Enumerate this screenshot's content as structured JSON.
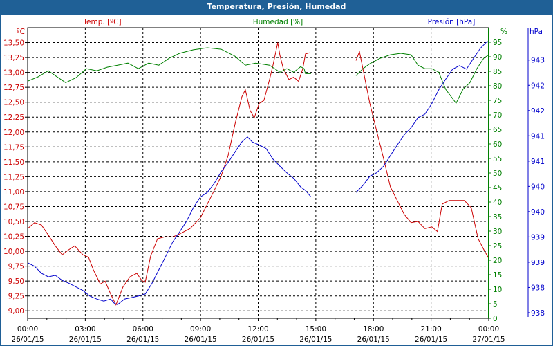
{
  "window": {
    "title": "Temperatura, Presión, Humedad"
  },
  "colors": {
    "temp": "#cc0000",
    "hum": "#008000",
    "pres": "#0000cc",
    "titlebar": "#1f6096"
  },
  "chart_data": {
    "type": "line",
    "title": "Temperatura, Presión, Humedad",
    "axes": {
      "temp": {
        "title": "Temp. [ºC]",
        "unit": "ºC",
        "range": [
          8.875,
          13.75
        ],
        "ticks": [
          9.0,
          9.25,
          9.5,
          9.75,
          10.0,
          10.25,
          10.5,
          10.75,
          11.0,
          11.25,
          11.5,
          11.75,
          12.0,
          12.25,
          12.5,
          12.75,
          13.0,
          13.25,
          13.5
        ],
        "tick_labels": [
          "9,00",
          "9,25",
          "9,50",
          "9,75",
          "10,00",
          "10,25",
          "10,50",
          "10,75",
          "11,00",
          "11,25",
          "11,50",
          "11,75",
          "12,00",
          "12,25",
          "12,50",
          "12,75",
          "13,00",
          "13,25",
          "13,50"
        ]
      },
      "hum": {
        "title": "Humedad [%]",
        "unit": "%",
        "range": [
          0,
          100
        ],
        "ticks": [
          0,
          5,
          10,
          15,
          20,
          25,
          30,
          35,
          40,
          45,
          50,
          55,
          60,
          65,
          70,
          75,
          80,
          85,
          90,
          95
        ],
        "tick_labels": [
          "0",
          "5",
          "10",
          "15",
          "20",
          "25",
          "30",
          "35",
          "40",
          "45",
          "50",
          "55",
          "60",
          "65",
          "70",
          "75",
          "80",
          "85",
          "90",
          "95"
        ]
      },
      "pres": {
        "title": "Presión [hPa]",
        "unit": "hPa",
        "range": [
          937.89,
          943.64
        ],
        "ticks": [
          938.0,
          938.5,
          939.0,
          939.5,
          940.0,
          940.5,
          941.0,
          941.5,
          942.0,
          942.5,
          943.0
        ],
        "tick_labels": [
          "938",
          "938",
          "939",
          "939",
          "940",
          "940",
          "941",
          "941",
          "942",
          "942",
          "943"
        ]
      },
      "x": {
        "range": [
          0,
          24
        ],
        "ticks": [
          0,
          3,
          6,
          9,
          12,
          15,
          18,
          21,
          24
        ],
        "tick_labels": [
          [
            "00:00",
            "26/01/15"
          ],
          [
            "03:00",
            "26/01/15"
          ],
          [
            "06:00",
            "26/01/15"
          ],
          [
            "09:00",
            "26/01/15"
          ],
          [
            "12:00",
            "26/01/15"
          ],
          [
            "15:00",
            "26/01/15"
          ],
          [
            "18:00",
            "26/01/15"
          ],
          [
            "21:00",
            "26/01/15"
          ],
          [
            "00:00",
            "27/01/15"
          ]
        ]
      }
    },
    "series": [
      {
        "name": "Temp. [ºC]",
        "axis": "temp",
        "segments": [
          [
            [
              0,
              10.38
            ],
            [
              0.36,
              10.48
            ],
            [
              0.72,
              10.44
            ],
            [
              1.08,
              10.27
            ],
            [
              1.44,
              10.09
            ],
            [
              1.8,
              9.94
            ],
            [
              2.16,
              10.03
            ],
            [
              2.45,
              10.09
            ],
            [
              2.88,
              9.94
            ],
            [
              3.17,
              9.9
            ],
            [
              3.42,
              9.69
            ],
            [
              3.78,
              9.45
            ],
            [
              4.03,
              9.5
            ],
            [
              4.32,
              9.28
            ],
            [
              4.6,
              9.1
            ],
            [
              4.96,
              9.4
            ],
            [
              5.32,
              9.57
            ],
            [
              5.68,
              9.63
            ],
            [
              5.94,
              9.51
            ],
            [
              6.12,
              9.48
            ],
            [
              6.4,
              9.92
            ],
            [
              6.76,
              10.21
            ],
            [
              7.12,
              10.24
            ],
            [
              7.55,
              10.24
            ],
            [
              7.91,
              10.29
            ],
            [
              8.45,
              10.38
            ],
            [
              8.99,
              10.56
            ],
            [
              9.35,
              10.79
            ],
            [
              9.71,
              11.02
            ],
            [
              10.07,
              11.26
            ],
            [
              10.43,
              11.6
            ],
            [
              10.79,
              12.13
            ],
            [
              11.15,
              12.59
            ],
            [
              11.33,
              12.71
            ],
            [
              11.58,
              12.36
            ],
            [
              11.8,
              12.24
            ],
            [
              12.05,
              12.48
            ],
            [
              12.3,
              12.53
            ],
            [
              12.59,
              12.88
            ],
            [
              12.77,
              13.12
            ],
            [
              13.02,
              13.5
            ],
            [
              13.13,
              13.29
            ],
            [
              13.31,
              13.06
            ],
            [
              13.6,
              12.88
            ],
            [
              13.85,
              12.92
            ],
            [
              14.1,
              12.85
            ],
            [
              14.32,
              13.06
            ],
            [
              14.46,
              13.31
            ],
            [
              14.68,
              13.33
            ]
          ],
          [
            [
              17.09,
              13.2
            ],
            [
              17.27,
              13.35
            ],
            [
              17.45,
              13.06
            ],
            [
              17.81,
              12.48
            ],
            [
              18.17,
              12.01
            ],
            [
              18.53,
              11.55
            ],
            [
              18.88,
              11.08
            ],
            [
              19.24,
              10.85
            ],
            [
              19.6,
              10.62
            ],
            [
              19.96,
              10.48
            ],
            [
              20.32,
              10.5
            ],
            [
              20.68,
              10.38
            ],
            [
              21.04,
              10.41
            ],
            [
              21.33,
              10.33
            ],
            [
              21.58,
              10.79
            ],
            [
              21.94,
              10.85
            ],
            [
              22.3,
              10.85
            ],
            [
              22.73,
              10.85
            ],
            [
              23.09,
              10.73
            ],
            [
              23.45,
              10.21
            ],
            [
              23.74,
              10.03
            ],
            [
              24,
              9.88
            ]
          ]
        ]
      },
      {
        "name": "Humedad [%]",
        "axis": "hum",
        "segments": [
          [
            [
              0,
              81.6
            ],
            [
              0.54,
              83.1
            ],
            [
              1.08,
              85.2
            ],
            [
              1.44,
              83.5
            ],
            [
              1.98,
              81.1
            ],
            [
              2.52,
              82.8
            ],
            [
              3.06,
              85.9
            ],
            [
              3.6,
              85.2
            ],
            [
              4.14,
              86.4
            ],
            [
              4.68,
              87.1
            ],
            [
              5.22,
              87.8
            ],
            [
              5.76,
              85.9
            ],
            [
              6.3,
              87.8
            ],
            [
              6.83,
              87.1
            ],
            [
              7.37,
              89.5
            ],
            [
              7.91,
              91.2
            ],
            [
              8.63,
              92.4
            ],
            [
              9.35,
              93.1
            ],
            [
              10.07,
              92.6
            ],
            [
              10.79,
              90.2
            ],
            [
              11.33,
              87.1
            ],
            [
              11.87,
              87.8
            ],
            [
              12.59,
              87.1
            ],
            [
              13.13,
              84.7
            ],
            [
              13.49,
              85.9
            ],
            [
              13.85,
              84.7
            ],
            [
              14.21,
              86.6
            ],
            [
              14.39,
              85.9
            ],
            [
              14.46,
              84.2
            ],
            [
              14.75,
              84.2
            ]
          ],
          [
            [
              17.09,
              83.5
            ],
            [
              17.45,
              85.9
            ],
            [
              17.81,
              87.6
            ],
            [
              18.35,
              89.5
            ],
            [
              18.88,
              90.7
            ],
            [
              19.42,
              91.2
            ],
            [
              19.96,
              90.7
            ],
            [
              20.32,
              87.1
            ],
            [
              20.68,
              85.9
            ],
            [
              21.04,
              85.9
            ],
            [
              21.4,
              84.7
            ],
            [
              21.76,
              78.8
            ],
            [
              22.3,
              74.0
            ],
            [
              22.66,
              78.8
            ],
            [
              23.02,
              81.1
            ],
            [
              23.38,
              85.9
            ],
            [
              23.74,
              89.5
            ],
            [
              24,
              90.7
            ]
          ]
        ]
      },
      {
        "name": "Presión [hPa]",
        "axis": "pres",
        "segments": [
          [
            [
              0,
              938.99
            ],
            [
              0.36,
              938.92
            ],
            [
              0.72,
              938.78
            ],
            [
              1.08,
              938.71
            ],
            [
              1.44,
              938.74
            ],
            [
              1.8,
              938.64
            ],
            [
              2.16,
              938.58
            ],
            [
              2.52,
              938.51
            ],
            [
              2.88,
              938.44
            ],
            [
              3.24,
              938.33
            ],
            [
              3.6,
              938.27
            ],
            [
              3.96,
              938.23
            ],
            [
              4.32,
              938.27
            ],
            [
              4.5,
              938.19
            ],
            [
              4.68,
              938.16
            ],
            [
              5.04,
              938.27
            ],
            [
              5.4,
              938.3
            ],
            [
              5.76,
              938.33
            ],
            [
              6.12,
              938.37
            ],
            [
              6.47,
              938.58
            ],
            [
              6.83,
              938.85
            ],
            [
              7.19,
              939.12
            ],
            [
              7.55,
              939.4
            ],
            [
              7.91,
              939.6
            ],
            [
              8.27,
              939.81
            ],
            [
              8.63,
              940.08
            ],
            [
              8.99,
              940.29
            ],
            [
              9.35,
              940.38
            ],
            [
              9.71,
              940.56
            ],
            [
              10.07,
              940.79
            ],
            [
              10.43,
              940.97
            ],
            [
              10.79,
              941.18
            ],
            [
              11.15,
              941.38
            ],
            [
              11.44,
              941.48
            ],
            [
              11.69,
              941.38
            ],
            [
              12.05,
              941.32
            ],
            [
              12.41,
              941.25
            ],
            [
              12.77,
              941.04
            ],
            [
              13.13,
              940.9
            ],
            [
              13.49,
              940.77
            ],
            [
              13.85,
              940.66
            ],
            [
              14.21,
              940.49
            ],
            [
              14.46,
              940.42
            ],
            [
              14.75,
              940.29
            ]
          ],
          [
            [
              17.09,
              940.38
            ],
            [
              17.45,
              940.52
            ],
            [
              17.81,
              940.7
            ],
            [
              18.17,
              940.77
            ],
            [
              18.53,
              940.9
            ],
            [
              18.88,
              941.11
            ],
            [
              19.24,
              941.32
            ],
            [
              19.6,
              941.52
            ],
            [
              19.96,
              941.66
            ],
            [
              20.32,
              941.86
            ],
            [
              20.68,
              941.93
            ],
            [
              21.04,
              942.14
            ],
            [
              21.4,
              942.41
            ],
            [
              21.76,
              942.62
            ],
            [
              22.12,
              942.82
            ],
            [
              22.48,
              942.89
            ],
            [
              22.84,
              942.82
            ],
            [
              23.2,
              943.03
            ],
            [
              23.56,
              943.23
            ],
            [
              23.92,
              943.37
            ],
            [
              24,
              943.34
            ]
          ]
        ]
      }
    ]
  }
}
